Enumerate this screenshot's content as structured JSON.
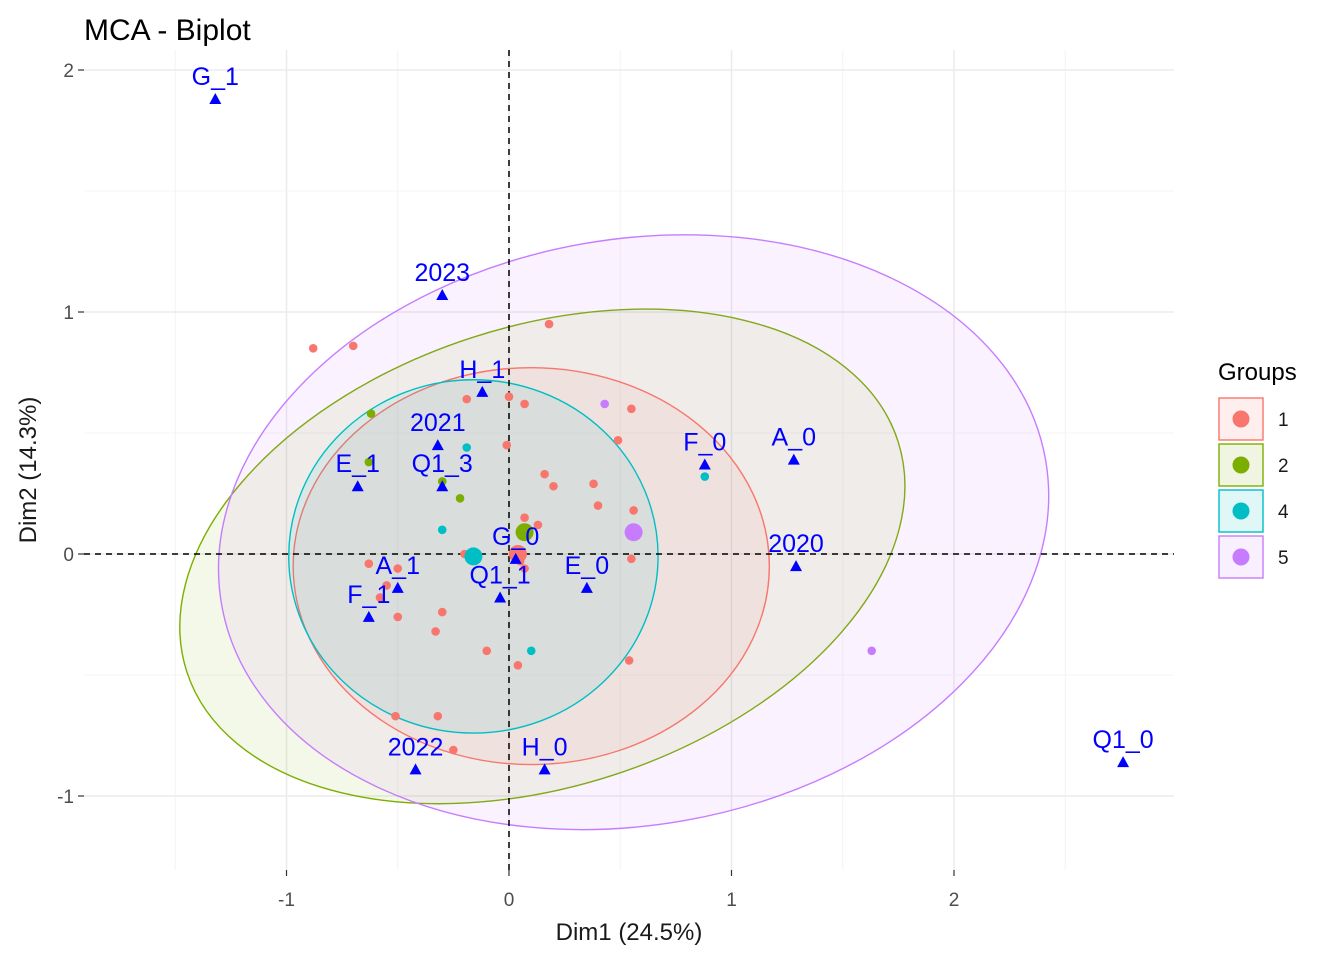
{
  "chart_data": {
    "type": "scatter",
    "title": "MCA - Biplot",
    "xlabel": "Dim1 (24.5%)",
    "ylabel": "Dim2 (14.3%)",
    "xlim": [
      -1.9,
      3.0
    ],
    "ylim": [
      -1.3,
      2.05
    ],
    "x_ticks": [
      -1,
      0,
      1,
      2
    ],
    "x_tick_labels": [
      "-1",
      "0",
      "1",
      "2"
    ],
    "y_ticks": [
      -1,
      0,
      1,
      2
    ],
    "y_tick_labels": [
      "-1",
      "0",
      "1",
      "2"
    ],
    "grid": true,
    "reference_lines": {
      "x": 0,
      "y": 0,
      "style": "dashed"
    },
    "legend": {
      "title": "Groups",
      "placement": "right",
      "entries": [
        {
          "label": "1",
          "color": "#f8766d"
        },
        {
          "label": "2",
          "color": "#7cae00"
        },
        {
          "label": "4",
          "color": "#00bfc4"
        },
        {
          "label": "5",
          "color": "#c77cff"
        }
      ]
    },
    "ellipses": [
      {
        "group": "2",
        "color": "#7cae00",
        "cx": 0.15,
        "cy": -0.01,
        "rx": 1.68,
        "ry": 0.95,
        "angle": -18
      },
      {
        "group": "5",
        "color": "#c77cff",
        "cx": 0.56,
        "cy": 0.09,
        "rx": 1.88,
        "ry": 1.21,
        "angle": -10
      },
      {
        "group": "1",
        "color": "#f8766d",
        "cx": 0.1,
        "cy": -0.05,
        "rx": 1.07,
        "ry": 0.82,
        "angle": 0
      },
      {
        "group": "4",
        "color": "#00bfc4",
        "cx": -0.16,
        "cy": -0.01,
        "rx": 0.83,
        "ry": 0.73,
        "angle": 0
      }
    ],
    "series": [
      {
        "name": "1",
        "color": "#f8766d",
        "points": [
          [
            -0.88,
            0.85
          ],
          [
            -0.7,
            0.86
          ],
          [
            0.18,
            0.95
          ],
          [
            0.55,
            0.6
          ],
          [
            0.0,
            0.65
          ],
          [
            0.07,
            0.62
          ],
          [
            -0.19,
            0.64
          ],
          [
            0.49,
            0.47
          ],
          [
            -0.01,
            0.45
          ],
          [
            0.16,
            0.33
          ],
          [
            0.2,
            0.28
          ],
          [
            0.38,
            0.29
          ],
          [
            0.4,
            0.2
          ],
          [
            0.56,
            0.18
          ],
          [
            0.07,
            0.15
          ],
          [
            0.13,
            0.12
          ],
          [
            0.07,
            0.09
          ],
          [
            0.55,
            -0.02
          ],
          [
            -0.2,
            0.0
          ],
          [
            0.02,
            0.0
          ],
          [
            0.05,
            -0.03
          ],
          [
            0.07,
            -0.06
          ],
          [
            -0.5,
            -0.06
          ],
          [
            -0.63,
            -0.04
          ],
          [
            -0.55,
            -0.13
          ],
          [
            -0.58,
            -0.18
          ],
          [
            -0.3,
            -0.24
          ],
          [
            -0.5,
            -0.26
          ],
          [
            -0.33,
            -0.32
          ],
          [
            -0.1,
            -0.4
          ],
          [
            0.04,
            -0.46
          ],
          [
            0.54,
            -0.44
          ],
          [
            -0.51,
            -0.67
          ],
          [
            -0.32,
            -0.67
          ],
          [
            -0.25,
            -0.81
          ]
        ],
        "centroid": [
          0.04,
          0.0
        ]
      },
      {
        "name": "2",
        "color": "#7cae00",
        "points": [
          [
            -0.62,
            0.58
          ],
          [
            -0.63,
            0.38
          ],
          [
            -0.3,
            0.3
          ],
          [
            -0.22,
            0.23
          ]
        ],
        "centroid": [
          0.07,
          0.09
        ]
      },
      {
        "name": "4",
        "color": "#00bfc4",
        "points": [
          [
            -0.19,
            0.44
          ],
          [
            -0.3,
            0.1
          ],
          [
            0.88,
            0.32
          ],
          [
            0.1,
            -0.4
          ]
        ],
        "centroid": [
          -0.16,
          -0.01
        ]
      },
      {
        "name": "5",
        "color": "#c77cff",
        "points": [
          [
            0.43,
            0.62
          ],
          [
            1.63,
            -0.4
          ]
        ],
        "centroid": [
          0.56,
          0.09
        ]
      }
    ],
    "variables": [
      {
        "label": "G_1",
        "x": -1.32,
        "y": 1.88
      },
      {
        "label": "2023",
        "x": -0.3,
        "y": 1.07
      },
      {
        "label": "H_1",
        "x": -0.12,
        "y": 0.67
      },
      {
        "label": "2021",
        "x": -0.32,
        "y": 0.45
      },
      {
        "label": "E_1",
        "x": -0.68,
        "y": 0.28
      },
      {
        "label": "Q1_3",
        "x": -0.3,
        "y": 0.28
      },
      {
        "label": "F_0",
        "x": 0.88,
        "y": 0.37
      },
      {
        "label": "A_0",
        "x": 1.28,
        "y": 0.39
      },
      {
        "label": "G_0",
        "x": 0.03,
        "y": -0.02
      },
      {
        "label": "2020",
        "x": 1.29,
        "y": -0.05
      },
      {
        "label": "A_1",
        "x": -0.5,
        "y": -0.14
      },
      {
        "label": "Q1_1",
        "x": -0.04,
        "y": -0.18
      },
      {
        "label": "E_0",
        "x": 0.35,
        "y": -0.14
      },
      {
        "label": "F_1",
        "x": -0.63,
        "y": -0.26
      },
      {
        "label": "2022",
        "x": -0.42,
        "y": -0.89
      },
      {
        "label": "H_0",
        "x": 0.16,
        "y": -0.89
      },
      {
        "label": "Q1_0",
        "x": 2.76,
        "y": -0.86
      }
    ]
  }
}
